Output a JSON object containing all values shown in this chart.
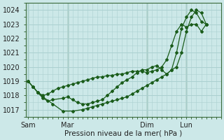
{
  "background_color": "#cce8e8",
  "grid_color": "#aad0d0",
  "line_color": "#1a5c1a",
  "xlabel": "Pression niveau de la mer( hPa )",
  "ylim": [
    1016.5,
    1024.5
  ],
  "yticks": [
    1017,
    1018,
    1019,
    1020,
    1021,
    1022,
    1023,
    1024
  ],
  "xtick_labels": [
    "Sam",
    "Mar",
    "Dim",
    "Lun"
  ],
  "xtick_positions": [
    0,
    16,
    48,
    64
  ],
  "xlim": [
    -1,
    78
  ],
  "vlines_x": [
    0,
    16,
    48,
    64
  ],
  "series1_x": [
    0,
    2,
    4,
    6,
    8,
    10,
    12,
    14,
    16,
    18,
    20,
    22,
    24,
    26,
    28,
    30,
    32,
    34,
    36,
    38,
    40,
    42,
    44,
    46,
    48,
    50,
    52,
    54,
    56,
    58,
    60,
    62,
    64,
    66,
    68,
    70,
    72
  ],
  "series1_y": [
    1019.0,
    1018.6,
    1018.2,
    1018.0,
    1018.1,
    1018.3,
    1018.5,
    1018.6,
    1018.7,
    1018.8,
    1018.9,
    1019.0,
    1019.1,
    1019.2,
    1019.3,
    1019.3,
    1019.4,
    1019.4,
    1019.5,
    1019.5,
    1019.6,
    1019.7,
    1019.7,
    1019.7,
    1019.6,
    1019.7,
    1019.8,
    1020.0,
    1020.5,
    1021.5,
    1022.5,
    1023.0,
    1022.8,
    1023.0,
    1023.0,
    1022.5,
    1023.0
  ],
  "series2_x": [
    0,
    2,
    4,
    6,
    8,
    10,
    14,
    16,
    18,
    20,
    22,
    24,
    26,
    28,
    30,
    32,
    34,
    36,
    38,
    40,
    42,
    44,
    46,
    48,
    50,
    52,
    54,
    56,
    58,
    60,
    62,
    64,
    66,
    68,
    70,
    72
  ],
  "series2_y": [
    1019.0,
    1018.6,
    1018.2,
    1017.8,
    1017.6,
    1017.7,
    1017.8,
    1017.9,
    1017.7,
    1017.5,
    1017.4,
    1017.4,
    1017.5,
    1017.6,
    1017.7,
    1018.0,
    1018.3,
    1018.6,
    1018.9,
    1019.1,
    1019.3,
    1019.6,
    1019.8,
    1019.8,
    1020.0,
    1020.1,
    1019.8,
    1019.5,
    1019.8,
    1021.0,
    1022.7,
    1023.5,
    1024.0,
    1023.8,
    1023.2,
    1023.0
  ],
  "series3_x": [
    0,
    2,
    4,
    6,
    10,
    14,
    18,
    22,
    24,
    26,
    28,
    30,
    32,
    34,
    36,
    38,
    40,
    42,
    44,
    46,
    48,
    50,
    52,
    54,
    56,
    58,
    60,
    62,
    64,
    66,
    68,
    70,
    72
  ],
  "series3_y": [
    1019.0,
    1018.6,
    1018.2,
    1017.9,
    1017.4,
    1016.9,
    1016.9,
    1017.0,
    1017.1,
    1017.2,
    1017.3,
    1017.4,
    1017.5,
    1017.6,
    1017.7,
    1017.8,
    1017.9,
    1018.1,
    1018.3,
    1018.5,
    1018.7,
    1018.9,
    1019.1,
    1019.3,
    1019.5,
    1019.8,
    1020.0,
    1021.0,
    1022.5,
    1023.5,
    1024.0,
    1023.8,
    1023.0
  ]
}
